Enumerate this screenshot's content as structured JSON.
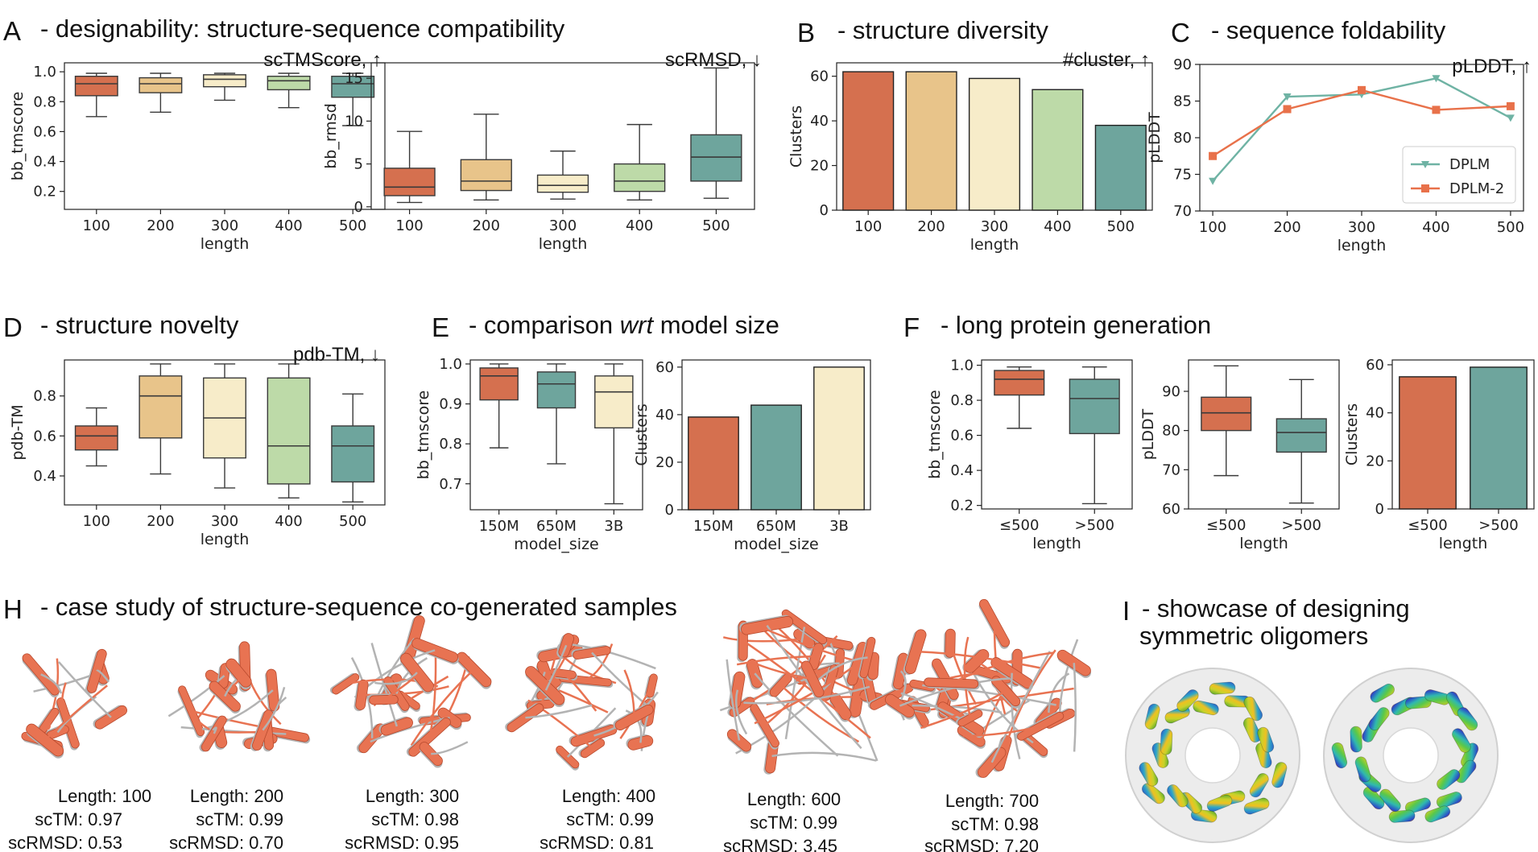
{
  "colors": {
    "c1": "#d5704f",
    "c2": "#e8c48a",
    "c3": "#f7ecc9",
    "c4": "#bddaa8",
    "c5": "#6ea59d",
    "dplm": "#6fb3a4",
    "dplm2": "#e8714a",
    "protein": "#e87352",
    "protein_gray": "#b3b3b3"
  },
  "panels": {
    "A": {
      "letter": "A",
      "title": "- designability: structure-sequence compatibility"
    },
    "B": {
      "letter": "B",
      "title": "- structure diversity"
    },
    "C": {
      "letter": "C",
      "title": "- sequence foldability"
    },
    "D": {
      "letter": "D",
      "title": "- structure novelty"
    },
    "E": {
      "letter": "E",
      "title": "- comparison wrt model size",
      "title_pre": "- comparison ",
      "title_em": "wrt",
      "title_post": " model size"
    },
    "F": {
      "letter": "F",
      "title": "- long protein generation"
    },
    "H": {
      "letter": "H",
      "title": "- case study of structure-sequence co-generated samples"
    },
    "I": {
      "letter": "I",
      "title_line1": "- showcase of designing",
      "title_line2": "symmetric oligomers"
    }
  },
  "metrics": {
    "a1": "scTMScore, ↑",
    "a2": "scRMSD, ↓",
    "b": "#cluster, ↑",
    "c": "pLDDT, ↑",
    "d": "pdb-TM, ↓"
  },
  "chart_data": [
    {
      "id": "A1",
      "type": "box",
      "xlabel": "length",
      "ylabel": "bb_tmscore",
      "categories": [
        "100",
        "200",
        "300",
        "400",
        "500"
      ],
      "ylim": [
        0.08,
        1.06
      ],
      "yticks": [
        0.2,
        0.4,
        0.6,
        0.8,
        1.0
      ],
      "boxes": [
        {
          "whislo": 0.7,
          "q1": 0.84,
          "med": 0.92,
          "q3": 0.97,
          "whishi": 0.99
        },
        {
          "whislo": 0.73,
          "q1": 0.86,
          "med": 0.92,
          "q3": 0.96,
          "whishi": 0.99
        },
        {
          "whislo": 0.81,
          "q1": 0.9,
          "med": 0.95,
          "q3": 0.98,
          "whishi": 0.99
        },
        {
          "whislo": 0.76,
          "q1": 0.88,
          "med": 0.94,
          "q3": 0.97,
          "whishi": 0.99
        },
        {
          "whislo": 0.64,
          "q1": 0.83,
          "med": 0.92,
          "q3": 0.97,
          "whishi": 0.99
        }
      ]
    },
    {
      "id": "A2",
      "type": "box",
      "xlabel": "length",
      "ylabel": "bb_rmsd",
      "categories": [
        "100",
        "200",
        "300",
        "400",
        "500"
      ],
      "ylim": [
        -0.3,
        16.8
      ],
      "yticks": [
        0,
        5,
        10,
        15
      ],
      "boxes": [
        {
          "whislo": 0.5,
          "q1": 1.3,
          "med": 2.3,
          "q3": 4.5,
          "whishi": 8.8
        },
        {
          "whislo": 0.8,
          "q1": 1.9,
          "med": 3.0,
          "q3": 5.5,
          "whishi": 10.8
        },
        {
          "whislo": 0.9,
          "q1": 1.7,
          "med": 2.5,
          "q3": 3.7,
          "whishi": 6.5
        },
        {
          "whislo": 0.8,
          "q1": 1.8,
          "med": 3.0,
          "q3": 5.0,
          "whishi": 9.6
        },
        {
          "whislo": 1.0,
          "q1": 3.0,
          "med": 5.8,
          "q3": 8.4,
          "whishi": 16.2
        }
      ]
    },
    {
      "id": "B",
      "type": "bar",
      "xlabel": "length",
      "ylabel": "Clusters",
      "categories": [
        "100",
        "200",
        "300",
        "400",
        "500"
      ],
      "values": [
        62,
        62,
        59,
        54,
        38
      ],
      "ylim": [
        0,
        66
      ],
      "yticks": [
        0,
        20,
        40,
        60
      ]
    },
    {
      "id": "C",
      "type": "line",
      "xlabel": "length",
      "ylabel": "pLDDT",
      "x": [
        100,
        200,
        300,
        400,
        500
      ],
      "ylim": [
        70,
        90
      ],
      "yticks": [
        70,
        75,
        80,
        85,
        90
      ],
      "series": [
        {
          "name": "DPLM",
          "values": [
            74.1,
            85.6,
            85.9,
            88.1,
            82.7
          ]
        },
        {
          "name": "DPLM-2",
          "values": [
            77.5,
            83.9,
            86.5,
            83.8,
            84.3
          ]
        }
      ],
      "legend": "lower-right"
    },
    {
      "id": "D",
      "type": "box",
      "xlabel": "length",
      "ylabel": "pdb-TM",
      "categories": [
        "100",
        "200",
        "300",
        "400",
        "500"
      ],
      "ylim": [
        0.255,
        0.98
      ],
      "yticks": [
        0.4,
        0.6,
        0.8
      ],
      "boxes": [
        {
          "whislo": 0.45,
          "q1": 0.53,
          "med": 0.6,
          "q3": 0.65,
          "whishi": 0.74
        },
        {
          "whislo": 0.41,
          "q1": 0.59,
          "med": 0.8,
          "q3": 0.9,
          "whishi": 0.96
        },
        {
          "whislo": 0.34,
          "q1": 0.49,
          "med": 0.69,
          "q3": 0.89,
          "whishi": 0.96
        },
        {
          "whislo": 0.29,
          "q1": 0.36,
          "med": 0.55,
          "q3": 0.89,
          "whishi": 0.96
        },
        {
          "whislo": 0.27,
          "q1": 0.37,
          "med": 0.55,
          "q3": 0.65,
          "whishi": 0.81
        }
      ]
    },
    {
      "id": "E1",
      "type": "box",
      "xlabel": "model_size",
      "ylabel": "bb_tmscore",
      "categories": [
        "150M",
        "650M",
        "3B"
      ],
      "ylim": [
        0.635,
        1.01
      ],
      "yticks": [
        0.7,
        0.8,
        0.9,
        1.0
      ],
      "boxes": [
        {
          "whislo": 0.79,
          "q1": 0.91,
          "med": 0.97,
          "q3": 0.99,
          "whishi": 1.0
        },
        {
          "whislo": 0.75,
          "q1": 0.89,
          "med": 0.95,
          "q3": 0.98,
          "whishi": 1.0
        },
        {
          "whislo": 0.65,
          "q1": 0.84,
          "med": 0.93,
          "q3": 0.97,
          "whishi": 1.0
        }
      ]
    },
    {
      "id": "E2",
      "type": "bar",
      "xlabel": "model_size",
      "ylabel": "Clusters",
      "categories": [
        "150M",
        "650M",
        "3B"
      ],
      "values": [
        39,
        44,
        60
      ],
      "ylim": [
        0,
        63
      ],
      "yticks": [
        0,
        20,
        40,
        60
      ]
    },
    {
      "id": "F1",
      "type": "box",
      "xlabel": "length",
      "ylabel": "bb_tmscore",
      "categories": [
        "≤500",
        ">500"
      ],
      "ylim": [
        0.18,
        1.03
      ],
      "yticks": [
        0.2,
        0.4,
        0.6,
        0.8,
        1.0
      ],
      "boxes": [
        {
          "whislo": 0.64,
          "q1": 0.83,
          "med": 0.92,
          "q3": 0.97,
          "whishi": 0.99
        },
        {
          "whislo": 0.21,
          "q1": 0.61,
          "med": 0.81,
          "q3": 0.92,
          "whishi": 0.99
        }
      ]
    },
    {
      "id": "F2",
      "type": "box",
      "xlabel": "length",
      "ylabel": "pLDDT",
      "categories": [
        "≤500",
        ">500"
      ],
      "ylim": [
        60,
        98
      ],
      "yticks": [
        60,
        70,
        80,
        90
      ],
      "boxes": [
        {
          "whislo": 68.5,
          "q1": 80.0,
          "med": 84.5,
          "q3": 88.5,
          "whishi": 96.5
        },
        {
          "whislo": 61.5,
          "q1": 74.5,
          "med": 79.5,
          "q3": 83.0,
          "whishi": 93.0
        }
      ]
    },
    {
      "id": "F3",
      "type": "bar",
      "xlabel": "length",
      "ylabel": "Clusters",
      "categories": [
        "≤500",
        ">500"
      ],
      "values": [
        55,
        59
      ],
      "ylim": [
        0,
        62
      ],
      "yticks": [
        0,
        20,
        40,
        60
      ]
    }
  ],
  "cases": [
    {
      "length": "Length: 100",
      "sctm": "scTM: 0.97",
      "scrmsd": "scRMSD: 0.53"
    },
    {
      "length": "Length: 200",
      "sctm": "scTM: 0.99",
      "scrmsd": "scRMSD: 0.70"
    },
    {
      "length": "Length: 300",
      "sctm": "scTM: 0.98",
      "scrmsd": "scRMSD: 0.95"
    },
    {
      "length": "Length: 400",
      "sctm": "scTM: 0.99",
      "scrmsd": "scRMSD: 0.81"
    },
    {
      "length": "Length: 600",
      "sctm": "scTM: 0.99",
      "scrmsd": "scRMSD: 3.45"
    },
    {
      "length": "Length: 700",
      "sctm": "scTM: 0.98",
      "scrmsd": "scRMSD: 7.20"
    }
  ]
}
